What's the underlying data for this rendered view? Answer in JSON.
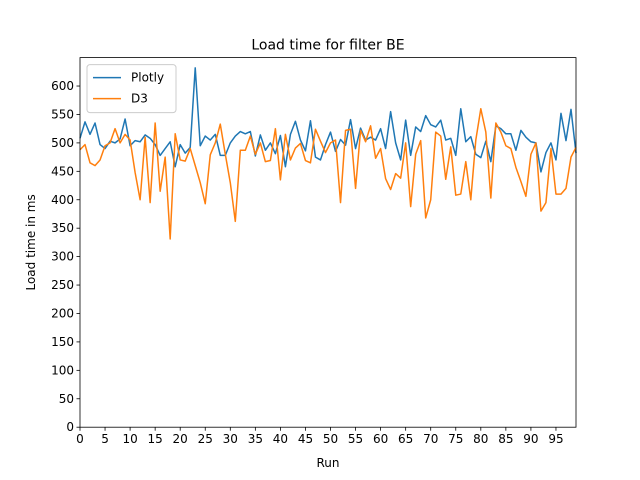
{
  "chart_data": {
    "type": "line",
    "title": "Load time for filter BE",
    "xlabel": "Run",
    "ylabel": "Load time in ms",
    "xlim": [
      0,
      99
    ],
    "ylim": [
      0,
      650
    ],
    "x_ticks": [
      0,
      5,
      10,
      15,
      20,
      25,
      30,
      35,
      40,
      45,
      50,
      55,
      60,
      65,
      70,
      75,
      80,
      85,
      90,
      95
    ],
    "y_ticks": [
      0,
      50,
      100,
      150,
      200,
      250,
      300,
      350,
      400,
      450,
      500,
      550,
      600
    ],
    "grid": false,
    "legend_position": "top-left",
    "x": [
      0,
      1,
      2,
      3,
      4,
      5,
      6,
      7,
      8,
      9,
      10,
      11,
      12,
      13,
      14,
      15,
      16,
      17,
      18,
      19,
      20,
      21,
      22,
      23,
      24,
      25,
      26,
      27,
      28,
      29,
      30,
      31,
      32,
      33,
      34,
      35,
      36,
      37,
      38,
      39,
      40,
      41,
      42,
      43,
      44,
      45,
      46,
      47,
      48,
      49,
      50,
      51,
      52,
      53,
      54,
      55,
      56,
      57,
      58,
      59,
      60,
      61,
      62,
      63,
      64,
      65,
      66,
      67,
      68,
      69,
      70,
      71,
      72,
      73,
      74,
      75,
      76,
      77,
      78,
      79,
      80,
      81,
      82,
      83,
      84,
      85,
      86,
      87,
      88,
      89,
      90,
      91,
      92,
      93,
      94,
      95,
      96,
      97,
      98,
      99
    ],
    "series": [
      {
        "name": "Plotly",
        "color": "#1f77b4",
        "values": [
          508,
          537,
          515,
          535,
          497,
          490,
          503,
          500,
          507,
          542,
          495,
          504,
          502,
          514,
          508,
          497,
          478,
          490,
          502,
          458,
          497,
          482,
          492,
          632,
          495,
          512,
          505,
          515,
          478,
          478,
          500,
          512,
          520,
          516,
          520,
          477,
          514,
          487,
          500,
          481,
          513,
          458,
          515,
          538,
          505,
          486,
          539,
          475,
          470,
          497,
          519,
          485,
          506,
          496,
          541,
          490,
          526,
          505,
          510,
          505,
          525,
          490,
          555,
          500,
          470,
          540,
          478,
          528,
          520,
          548,
          532,
          528,
          540,
          505,
          508,
          478,
          560,
          502,
          511,
          480,
          474,
          503,
          467,
          530,
          525,
          516,
          516,
          487,
          522,
          510,
          502,
          500,
          449,
          483,
          500,
          470,
          552,
          504,
          559,
          482
        ]
      },
      {
        "name": "D3",
        "color": "#ff7f0e",
        "values": [
          488,
          497,
          465,
          460,
          470,
          495,
          500,
          525,
          500,
          515,
          505,
          448,
          400,
          510,
          395,
          535,
          415,
          475,
          331,
          516,
          470,
          468,
          490,
          460,
          430,
          393,
          479,
          500,
          533,
          480,
          430,
          362,
          487,
          487,
          512,
          480,
          500,
          467,
          469,
          525,
          435,
          515,
          470,
          491,
          499,
          469,
          465,
          524,
          503,
          483,
          500,
          505,
          395,
          522,
          524,
          420,
          522,
          502,
          530,
          473,
          490,
          437,
          418,
          446,
          438,
          500,
          388,
          480,
          504,
          368,
          400,
          519,
          512,
          436,
          493,
          408,
          410,
          467,
          400,
          505,
          560,
          519,
          403,
          535,
          519,
          495,
          490,
          457,
          432,
          406,
          480,
          500,
          380,
          395,
          490,
          410,
          410,
          420,
          475,
          492
        ]
      }
    ]
  }
}
